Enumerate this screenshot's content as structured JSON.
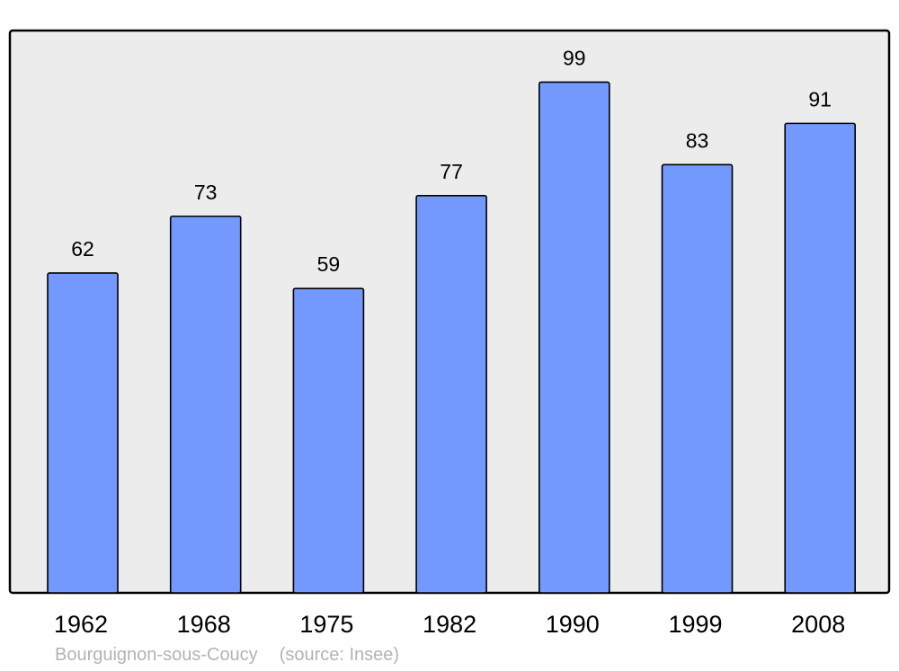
{
  "chart_data": {
    "type": "bar",
    "categories": [
      "1962",
      "1968",
      "1975",
      "1982",
      "1990",
      "1999",
      "2008"
    ],
    "values": [
      62,
      73,
      59,
      77,
      99,
      83,
      91
    ],
    "title": "",
    "xlabel": "",
    "ylabel": "",
    "ylim": [
      0,
      109
    ],
    "grid": false,
    "data_labels": true,
    "colors": {
      "bar": "#7399ff",
      "plot_background": "#ececec",
      "border": "#000000",
      "caption": "#b3b3b3"
    }
  },
  "caption": {
    "place": "Bourguignon-sous-Coucy",
    "source": "(source: Insee)"
  }
}
